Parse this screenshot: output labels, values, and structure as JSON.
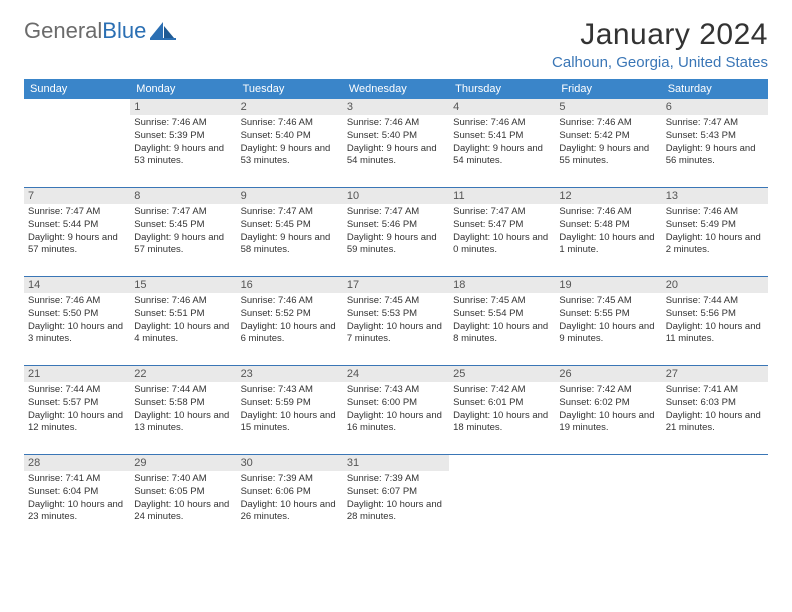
{
  "brand": {
    "text_gray": "General",
    "text_blue": "Blue"
  },
  "title": "January 2024",
  "location": "Calhoun, Georgia, United States",
  "colors": {
    "header_blue": "#3a85c9",
    "location_blue": "#3a76b6",
    "daynum_bg": "#e9e9e9",
    "rule": "#3a76b6",
    "text": "#333333",
    "logo_gray": "#6b6b6b"
  },
  "weekdays": [
    "Sunday",
    "Monday",
    "Tuesday",
    "Wednesday",
    "Thursday",
    "Friday",
    "Saturday"
  ],
  "weeks": [
    [
      {
        "day": "",
        "sunrise": "",
        "sunset": "",
        "daylight": ""
      },
      {
        "day": "1",
        "sunrise": "Sunrise: 7:46 AM",
        "sunset": "Sunset: 5:39 PM",
        "daylight": "Daylight: 9 hours and 53 minutes."
      },
      {
        "day": "2",
        "sunrise": "Sunrise: 7:46 AM",
        "sunset": "Sunset: 5:40 PM",
        "daylight": "Daylight: 9 hours and 53 minutes."
      },
      {
        "day": "3",
        "sunrise": "Sunrise: 7:46 AM",
        "sunset": "Sunset: 5:40 PM",
        "daylight": "Daylight: 9 hours and 54 minutes."
      },
      {
        "day": "4",
        "sunrise": "Sunrise: 7:46 AM",
        "sunset": "Sunset: 5:41 PM",
        "daylight": "Daylight: 9 hours and 54 minutes."
      },
      {
        "day": "5",
        "sunrise": "Sunrise: 7:46 AM",
        "sunset": "Sunset: 5:42 PM",
        "daylight": "Daylight: 9 hours and 55 minutes."
      },
      {
        "day": "6",
        "sunrise": "Sunrise: 7:47 AM",
        "sunset": "Sunset: 5:43 PM",
        "daylight": "Daylight: 9 hours and 56 minutes."
      }
    ],
    [
      {
        "day": "7",
        "sunrise": "Sunrise: 7:47 AM",
        "sunset": "Sunset: 5:44 PM",
        "daylight": "Daylight: 9 hours and 57 minutes."
      },
      {
        "day": "8",
        "sunrise": "Sunrise: 7:47 AM",
        "sunset": "Sunset: 5:45 PM",
        "daylight": "Daylight: 9 hours and 57 minutes."
      },
      {
        "day": "9",
        "sunrise": "Sunrise: 7:47 AM",
        "sunset": "Sunset: 5:45 PM",
        "daylight": "Daylight: 9 hours and 58 minutes."
      },
      {
        "day": "10",
        "sunrise": "Sunrise: 7:47 AM",
        "sunset": "Sunset: 5:46 PM",
        "daylight": "Daylight: 9 hours and 59 minutes."
      },
      {
        "day": "11",
        "sunrise": "Sunrise: 7:47 AM",
        "sunset": "Sunset: 5:47 PM",
        "daylight": "Daylight: 10 hours and 0 minutes."
      },
      {
        "day": "12",
        "sunrise": "Sunrise: 7:46 AM",
        "sunset": "Sunset: 5:48 PM",
        "daylight": "Daylight: 10 hours and 1 minute."
      },
      {
        "day": "13",
        "sunrise": "Sunrise: 7:46 AM",
        "sunset": "Sunset: 5:49 PM",
        "daylight": "Daylight: 10 hours and 2 minutes."
      }
    ],
    [
      {
        "day": "14",
        "sunrise": "Sunrise: 7:46 AM",
        "sunset": "Sunset: 5:50 PM",
        "daylight": "Daylight: 10 hours and 3 minutes."
      },
      {
        "day": "15",
        "sunrise": "Sunrise: 7:46 AM",
        "sunset": "Sunset: 5:51 PM",
        "daylight": "Daylight: 10 hours and 4 minutes."
      },
      {
        "day": "16",
        "sunrise": "Sunrise: 7:46 AM",
        "sunset": "Sunset: 5:52 PM",
        "daylight": "Daylight: 10 hours and 6 minutes."
      },
      {
        "day": "17",
        "sunrise": "Sunrise: 7:45 AM",
        "sunset": "Sunset: 5:53 PM",
        "daylight": "Daylight: 10 hours and 7 minutes."
      },
      {
        "day": "18",
        "sunrise": "Sunrise: 7:45 AM",
        "sunset": "Sunset: 5:54 PM",
        "daylight": "Daylight: 10 hours and 8 minutes."
      },
      {
        "day": "19",
        "sunrise": "Sunrise: 7:45 AM",
        "sunset": "Sunset: 5:55 PM",
        "daylight": "Daylight: 10 hours and 9 minutes."
      },
      {
        "day": "20",
        "sunrise": "Sunrise: 7:44 AM",
        "sunset": "Sunset: 5:56 PM",
        "daylight": "Daylight: 10 hours and 11 minutes."
      }
    ],
    [
      {
        "day": "21",
        "sunrise": "Sunrise: 7:44 AM",
        "sunset": "Sunset: 5:57 PM",
        "daylight": "Daylight: 10 hours and 12 minutes."
      },
      {
        "day": "22",
        "sunrise": "Sunrise: 7:44 AM",
        "sunset": "Sunset: 5:58 PM",
        "daylight": "Daylight: 10 hours and 13 minutes."
      },
      {
        "day": "23",
        "sunrise": "Sunrise: 7:43 AM",
        "sunset": "Sunset: 5:59 PM",
        "daylight": "Daylight: 10 hours and 15 minutes."
      },
      {
        "day": "24",
        "sunrise": "Sunrise: 7:43 AM",
        "sunset": "Sunset: 6:00 PM",
        "daylight": "Daylight: 10 hours and 16 minutes."
      },
      {
        "day": "25",
        "sunrise": "Sunrise: 7:42 AM",
        "sunset": "Sunset: 6:01 PM",
        "daylight": "Daylight: 10 hours and 18 minutes."
      },
      {
        "day": "26",
        "sunrise": "Sunrise: 7:42 AM",
        "sunset": "Sunset: 6:02 PM",
        "daylight": "Daylight: 10 hours and 19 minutes."
      },
      {
        "day": "27",
        "sunrise": "Sunrise: 7:41 AM",
        "sunset": "Sunset: 6:03 PM",
        "daylight": "Daylight: 10 hours and 21 minutes."
      }
    ],
    [
      {
        "day": "28",
        "sunrise": "Sunrise: 7:41 AM",
        "sunset": "Sunset: 6:04 PM",
        "daylight": "Daylight: 10 hours and 23 minutes."
      },
      {
        "day": "29",
        "sunrise": "Sunrise: 7:40 AM",
        "sunset": "Sunset: 6:05 PM",
        "daylight": "Daylight: 10 hours and 24 minutes."
      },
      {
        "day": "30",
        "sunrise": "Sunrise: 7:39 AM",
        "sunset": "Sunset: 6:06 PM",
        "daylight": "Daylight: 10 hours and 26 minutes."
      },
      {
        "day": "31",
        "sunrise": "Sunrise: 7:39 AM",
        "sunset": "Sunset: 6:07 PM",
        "daylight": "Daylight: 10 hours and 28 minutes."
      },
      {
        "day": "",
        "sunrise": "",
        "sunset": "",
        "daylight": ""
      },
      {
        "day": "",
        "sunrise": "",
        "sunset": "",
        "daylight": ""
      },
      {
        "day": "",
        "sunrise": "",
        "sunset": "",
        "daylight": ""
      }
    ]
  ]
}
